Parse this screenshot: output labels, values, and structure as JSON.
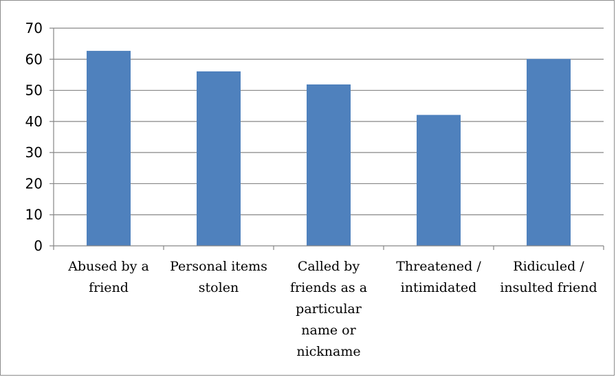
{
  "chart_data": {
    "type": "bar",
    "categories": [
      [
        "Abused by a",
        "friend"
      ],
      [
        "Personal items",
        "stolen"
      ],
      [
        "Called by",
        "friends as a",
        "particular",
        "name or",
        "nickname"
      ],
      [
        "Threatened /",
        "intimidated"
      ],
      [
        "Ridiculed /",
        "insulted friend"
      ]
    ],
    "values": [
      62.7,
      56.1,
      51.9,
      42.1,
      60.1
    ],
    "y_ticks": [
      "0",
      "10",
      "20",
      "30",
      "40",
      "50",
      "60",
      "70"
    ],
    "ylim": [
      0,
      70
    ],
    "grid": true,
    "bar_color": "#4f81bd",
    "title": "",
    "xlabel": "",
    "ylabel": ""
  }
}
